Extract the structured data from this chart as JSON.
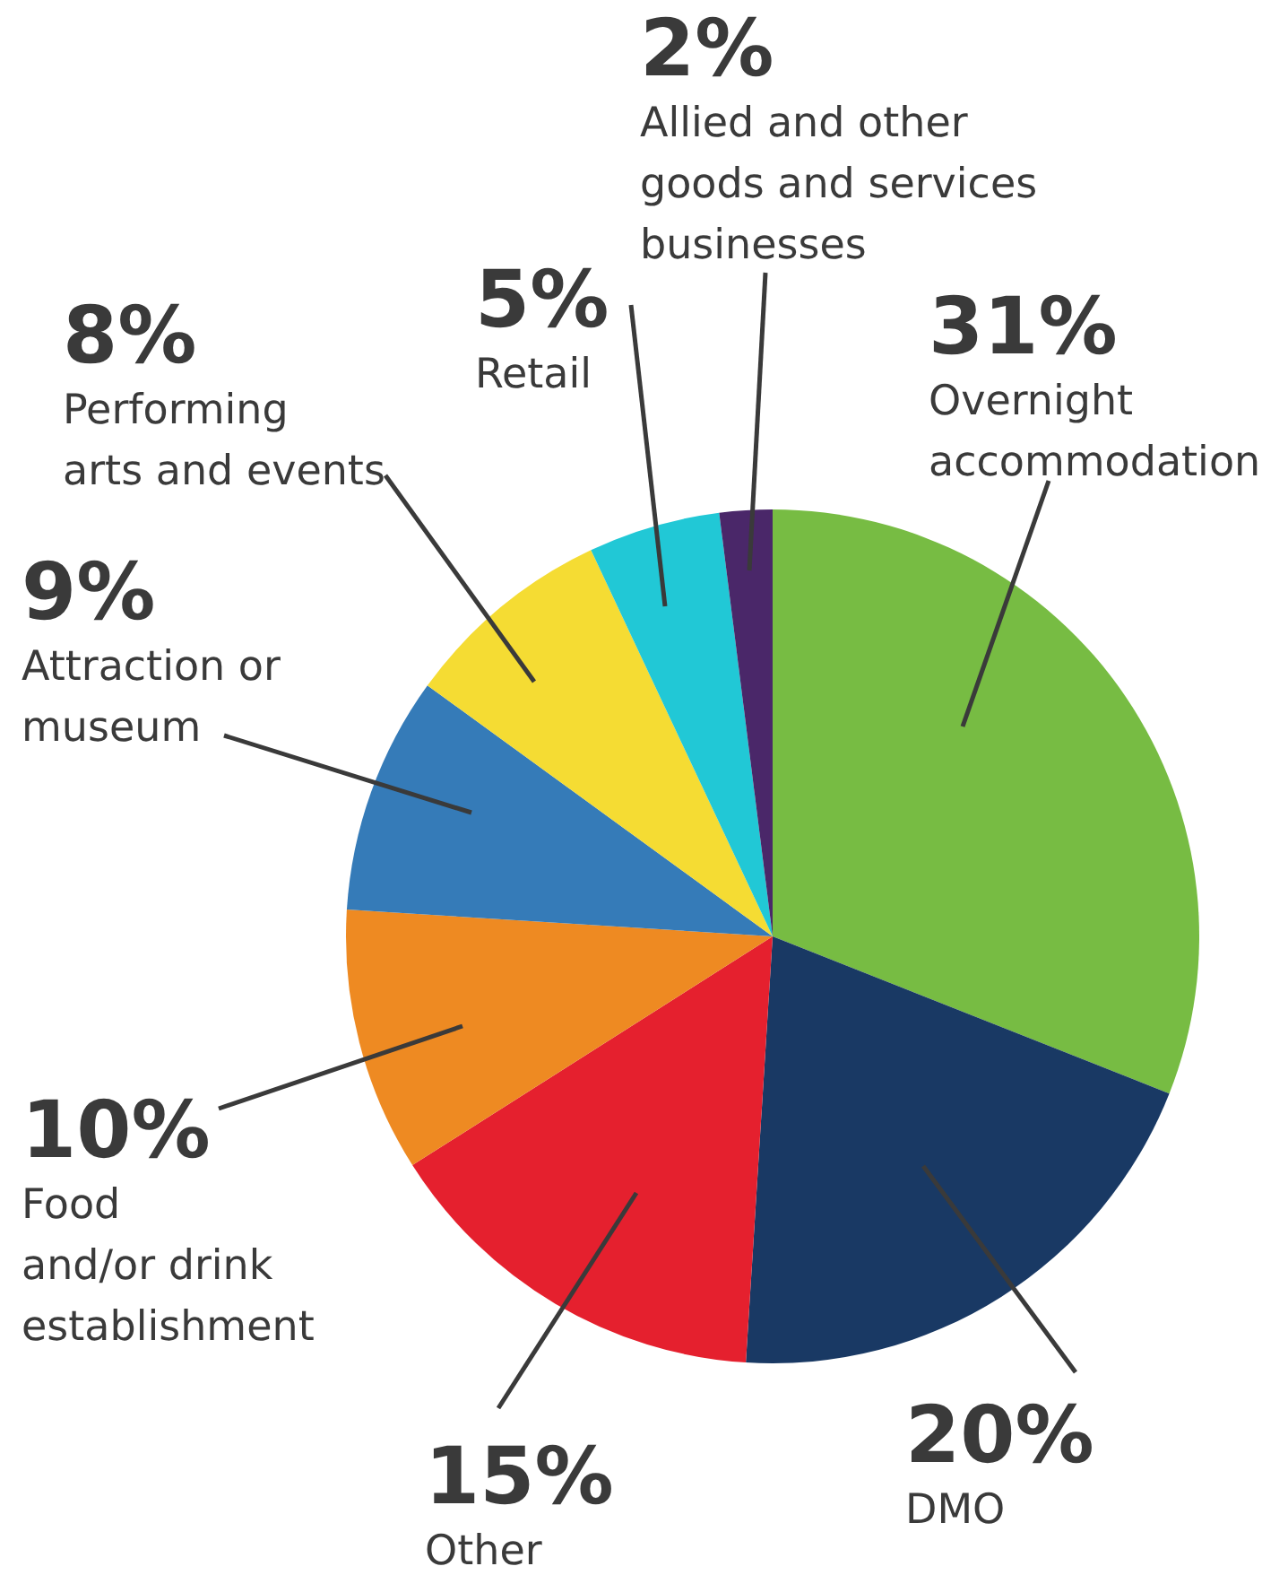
{
  "chart_data": {
    "type": "pie",
    "categories": [
      "Overnight accommodation",
      "DMO",
      "Other",
      "Food and/or drink establishment",
      "Attraction or museum",
      "Performing arts and events",
      "Retail",
      "Allied and other goods and services businesses"
    ],
    "values": [
      31,
      20,
      15,
      10,
      9,
      8,
      5,
      2
    ],
    "colors": [
      "#77bc43",
      "#193964",
      "#e5202e",
      "#ee8a22",
      "#357bb8",
      "#f5dc33",
      "#21c8d6",
      "#4a2769"
    ],
    "value_labels": [
      "31%",
      "20%",
      "15%",
      "10%",
      "9%",
      "8%",
      "5%",
      "2%"
    ]
  }
}
